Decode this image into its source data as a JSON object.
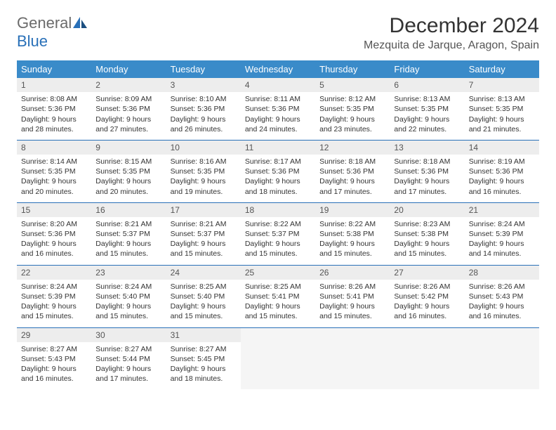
{
  "brand": {
    "part1": "General",
    "part2": "Blue"
  },
  "title": "December 2024",
  "location": "Mezquita de Jarque, Aragon, Spain",
  "colors": {
    "header_bg": "#3a8bc9",
    "header_text": "#ffffff",
    "border": "#2970b8",
    "daynum_bg": "#ededed",
    "brand_gray": "#6b6b6b",
    "brand_blue": "#2970b8"
  },
  "day_labels": [
    "Sunday",
    "Monday",
    "Tuesday",
    "Wednesday",
    "Thursday",
    "Friday",
    "Saturday"
  ],
  "weeks": [
    [
      {
        "n": "1",
        "sunrise": "8:08 AM",
        "sunset": "5:36 PM",
        "dh": "9",
        "dm": "28"
      },
      {
        "n": "2",
        "sunrise": "8:09 AM",
        "sunset": "5:36 PM",
        "dh": "9",
        "dm": "27"
      },
      {
        "n": "3",
        "sunrise": "8:10 AM",
        "sunset": "5:36 PM",
        "dh": "9",
        "dm": "26"
      },
      {
        "n": "4",
        "sunrise": "8:11 AM",
        "sunset": "5:36 PM",
        "dh": "9",
        "dm": "24"
      },
      {
        "n": "5",
        "sunrise": "8:12 AM",
        "sunset": "5:35 PM",
        "dh": "9",
        "dm": "23"
      },
      {
        "n": "6",
        "sunrise": "8:13 AM",
        "sunset": "5:35 PM",
        "dh": "9",
        "dm": "22"
      },
      {
        "n": "7",
        "sunrise": "8:13 AM",
        "sunset": "5:35 PM",
        "dh": "9",
        "dm": "21"
      }
    ],
    [
      {
        "n": "8",
        "sunrise": "8:14 AM",
        "sunset": "5:35 PM",
        "dh": "9",
        "dm": "20"
      },
      {
        "n": "9",
        "sunrise": "8:15 AM",
        "sunset": "5:35 PM",
        "dh": "9",
        "dm": "20"
      },
      {
        "n": "10",
        "sunrise": "8:16 AM",
        "sunset": "5:35 PM",
        "dh": "9",
        "dm": "19"
      },
      {
        "n": "11",
        "sunrise": "8:17 AM",
        "sunset": "5:36 PM",
        "dh": "9",
        "dm": "18"
      },
      {
        "n": "12",
        "sunrise": "8:18 AM",
        "sunset": "5:36 PM",
        "dh": "9",
        "dm": "17"
      },
      {
        "n": "13",
        "sunrise": "8:18 AM",
        "sunset": "5:36 PM",
        "dh": "9",
        "dm": "17"
      },
      {
        "n": "14",
        "sunrise": "8:19 AM",
        "sunset": "5:36 PM",
        "dh": "9",
        "dm": "16"
      }
    ],
    [
      {
        "n": "15",
        "sunrise": "8:20 AM",
        "sunset": "5:36 PM",
        "dh": "9",
        "dm": "16"
      },
      {
        "n": "16",
        "sunrise": "8:21 AM",
        "sunset": "5:37 PM",
        "dh": "9",
        "dm": "15"
      },
      {
        "n": "17",
        "sunrise": "8:21 AM",
        "sunset": "5:37 PM",
        "dh": "9",
        "dm": "15"
      },
      {
        "n": "18",
        "sunrise": "8:22 AM",
        "sunset": "5:37 PM",
        "dh": "9",
        "dm": "15"
      },
      {
        "n": "19",
        "sunrise": "8:22 AM",
        "sunset": "5:38 PM",
        "dh": "9",
        "dm": "15"
      },
      {
        "n": "20",
        "sunrise": "8:23 AM",
        "sunset": "5:38 PM",
        "dh": "9",
        "dm": "15"
      },
      {
        "n": "21",
        "sunrise": "8:24 AM",
        "sunset": "5:39 PM",
        "dh": "9",
        "dm": "14"
      }
    ],
    [
      {
        "n": "22",
        "sunrise": "8:24 AM",
        "sunset": "5:39 PM",
        "dh": "9",
        "dm": "15"
      },
      {
        "n": "23",
        "sunrise": "8:24 AM",
        "sunset": "5:40 PM",
        "dh": "9",
        "dm": "15"
      },
      {
        "n": "24",
        "sunrise": "8:25 AM",
        "sunset": "5:40 PM",
        "dh": "9",
        "dm": "15"
      },
      {
        "n": "25",
        "sunrise": "8:25 AM",
        "sunset": "5:41 PM",
        "dh": "9",
        "dm": "15"
      },
      {
        "n": "26",
        "sunrise": "8:26 AM",
        "sunset": "5:41 PM",
        "dh": "9",
        "dm": "15"
      },
      {
        "n": "27",
        "sunrise": "8:26 AM",
        "sunset": "5:42 PM",
        "dh": "9",
        "dm": "16"
      },
      {
        "n": "28",
        "sunrise": "8:26 AM",
        "sunset": "5:43 PM",
        "dh": "9",
        "dm": "16"
      }
    ],
    [
      {
        "n": "29",
        "sunrise": "8:27 AM",
        "sunset": "5:43 PM",
        "dh": "9",
        "dm": "16"
      },
      {
        "n": "30",
        "sunrise": "8:27 AM",
        "sunset": "5:44 PM",
        "dh": "9",
        "dm": "17"
      },
      {
        "n": "31",
        "sunrise": "8:27 AM",
        "sunset": "5:45 PM",
        "dh": "9",
        "dm": "18"
      },
      null,
      null,
      null,
      null
    ]
  ],
  "labels": {
    "sunrise": "Sunrise:",
    "sunset": "Sunset:",
    "daylight": "Daylight:",
    "hours_word": "hours",
    "and_word": "and",
    "minutes_word": "minutes."
  }
}
